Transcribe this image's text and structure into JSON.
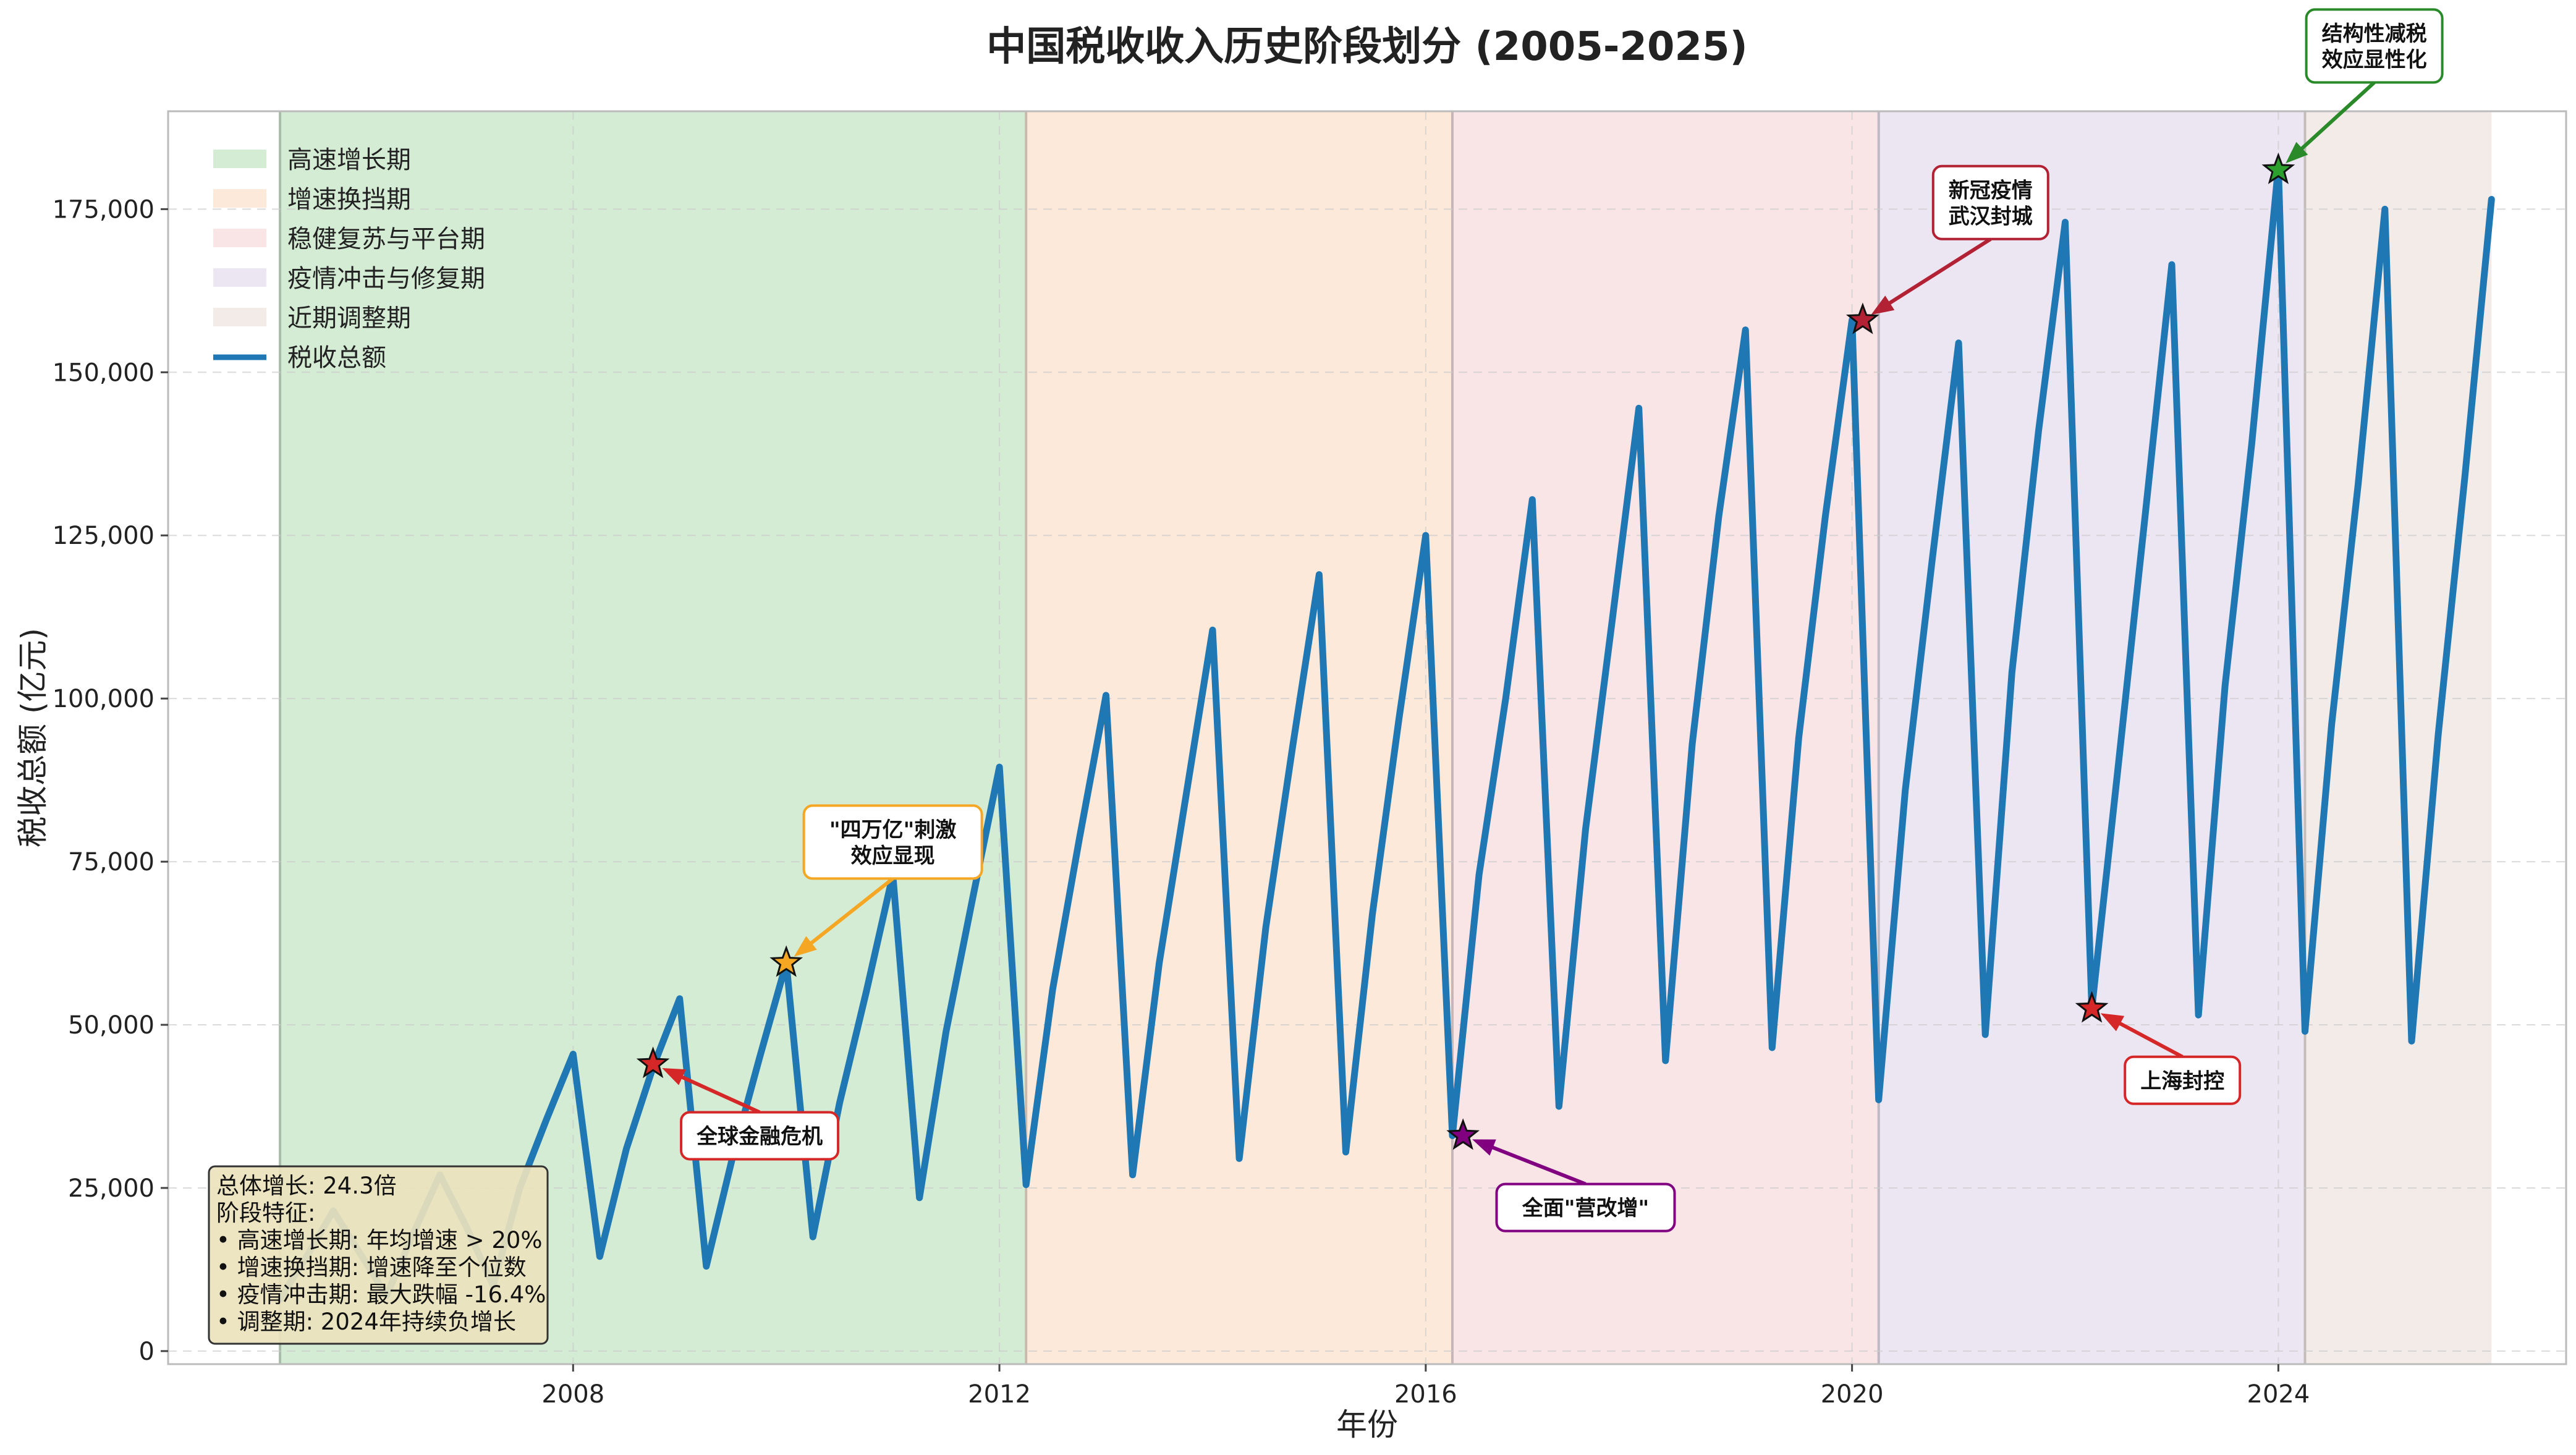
{
  "chart_data": {
    "type": "line",
    "title": "中国税收收入历史阶段划分 (2005-2025)",
    "xlabel": "年份",
    "ylabel": "税收总额 (亿元)",
    "xlim": [
      2004.2,
      2026.7
    ],
    "ylim": [
      -2000,
      190000
    ],
    "x_ticks": [
      2008,
      2012,
      2016,
      2020,
      2024
    ],
    "y_ticks": [
      0,
      25000,
      50000,
      75000,
      100000,
      125000,
      150000,
      175000
    ],
    "y_tick_labels": [
      "0",
      "25,000",
      "50,000",
      "75,000",
      "100,000",
      "125,000",
      "150,000",
      "175,000"
    ],
    "grid": true,
    "legend_position": "top-left",
    "phases": [
      {
        "name": "高速增长期",
        "start": 2005.25,
        "end": 2012.25,
        "color": "#d4ebd4"
      },
      {
        "name": "增速换挡期",
        "start": 2012.25,
        "end": 2016.25,
        "color": "#fde9d9"
      },
      {
        "name": "稳健复苏与平台期",
        "start": 2016.25,
        "end": 2020.25,
        "color": "#f9e4e6"
      },
      {
        "name": "疫情冲击与修复期",
        "start": 2020.25,
        "end": 2024.25,
        "color": "#ece6f3"
      },
      {
        "name": "近期调整期",
        "start": 2024.25,
        "end": 2026.0,
        "color": "#f2ebe8"
      }
    ],
    "series": [
      {
        "name": "税收总额",
        "color": "#1f77b4",
        "x": [
          2005.25,
          2005.5,
          2005.75,
          2006.0,
          2006.25,
          2006.5,
          2006.75,
          2007.0,
          2007.25,
          2007.5,
          2007.75,
          2008.0,
          2008.25,
          2008.5,
          2008.75,
          2009.0,
          2009.25,
          2009.5,
          2009.75,
          2010.0,
          2010.25,
          2010.5,
          2010.75,
          2011.0,
          2011.25,
          2011.5,
          2011.75,
          2012.0,
          2012.25,
          2012.5,
          2012.75,
          2013.0,
          2013.25,
          2013.5,
          2013.75,
          2014.0,
          2014.25,
          2014.5,
          2014.75,
          2015.0,
          2015.25,
          2015.5,
          2015.75,
          2016.0,
          2016.25,
          2016.5,
          2016.75,
          2017.0,
          2017.25,
          2017.5,
          2017.75,
          2018.0,
          2018.25,
          2018.5,
          2018.75,
          2019.0,
          2019.25,
          2019.5,
          2019.75,
          2020.0,
          2020.25,
          2020.5,
          2020.75,
          2021.0,
          2021.25,
          2021.5,
          2021.75,
          2022.0,
          2022.25,
          2022.5,
          2022.75,
          2023.0,
          2023.25,
          2023.5,
          2023.75,
          2024.0,
          2024.25,
          2024.5,
          2024.75,
          2025.0,
          2025.25,
          2025.5,
          2025.75,
          2026.0
        ],
        "y": [
          8000,
          14500,
          21500,
          15000,
          8500,
          18000,
          27000,
          19000,
          10000,
          25000,
          35500,
          45500,
          14500,
          31000,
          43500,
          54000,
          13000,
          30000,
          45000,
          59500,
          17500,
          38000,
          55000,
          73000,
          23500,
          49000,
          69500,
          89500,
          25500,
          55500,
          78500,
          100500,
          27000,
          59500,
          85000,
          110500,
          29500,
          65000,
          92500,
          119000,
          30500,
          67000,
          97000,
          125000,
          33000,
          73000,
          100000,
          130500,
          37500,
          80000,
          112000,
          144500,
          44500,
          93000,
          128000,
          156500,
          46500,
          94000,
          128000,
          158000,
          38500,
          86000,
          121000,
          154500,
          48500,
          104000,
          141000,
          173000,
          52500,
          90000,
          128000,
          166500,
          51500,
          102000,
          139000,
          181500,
          49000,
          96000,
          133000,
          175000,
          47500,
          94500,
          134000,
          176500
        ]
      }
    ],
    "annotations": [
      {
        "label": "全球金融危机",
        "x": 2008.75,
        "y": 44000,
        "text_x": 2009.75,
        "text_y": 33000,
        "color": "#d62728",
        "marker_color": "#d62728"
      },
      {
        "label": "\"四万亿\"刺激\n效应显现",
        "x": 2010.0,
        "y": 59500,
        "text_x": 2011.0,
        "text_y": 78000,
        "color": "#f5a623",
        "marker_color": "#f5a623"
      },
      {
        "label": "全面\"营改增\"",
        "x": 2016.35,
        "y": 33000,
        "text_x": 2017.5,
        "text_y": 22000,
        "color": "#800080",
        "marker_color": "#800080"
      },
      {
        "label": "新冠疫情\n武汉封城",
        "x": 2020.1,
        "y": 158000,
        "text_x": 2021.3,
        "text_y": 176000,
        "color": "#b22234",
        "marker_color": "#b22234"
      },
      {
        "label": "上海封控",
        "x": 2022.25,
        "y": 52500,
        "text_x": 2023.1,
        "text_y": 41500,
        "color": "#d62728",
        "marker_color": "#d62728"
      },
      {
        "label": "结构性减税\n效应显性化",
        "x": 2024.0,
        "y": 181000,
        "text_x": 2024.9,
        "text_y": 200000,
        "color": "#2a8a2a",
        "marker_color": "#2ca02c"
      }
    ],
    "summary_box": {
      "lines": [
        "总体增长: 24.3倍",
        "阶段特征:",
        "• 高速增长期: 年均增速 > 20%",
        "• 增速换挡期: 增速降至个位数",
        "• 疫情冲击期: 最大跌幅 -16.4%",
        "• 调整期: 2024年持续负增长"
      ]
    }
  }
}
